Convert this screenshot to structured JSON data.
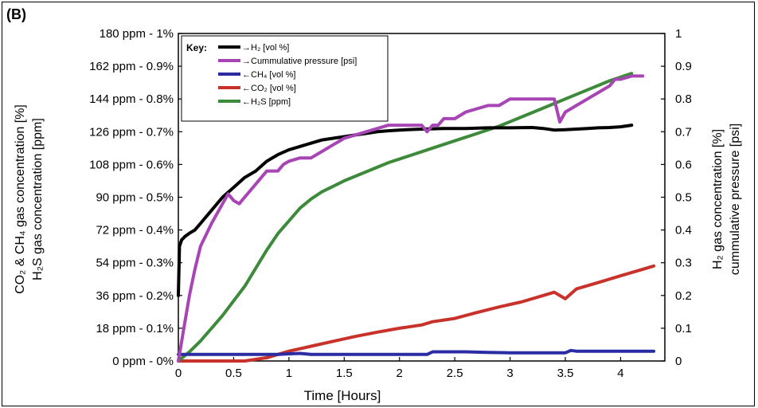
{
  "panel_label": "(B)",
  "chart_data": {
    "type": "line",
    "xlabel": "Time [Hours]",
    "xlim": [
      0,
      4.4
    ],
    "x_ticks": [
      "0",
      "0.5",
      "1",
      "1.5",
      "2",
      "2.5",
      "3",
      "3.5",
      "4"
    ],
    "y_left_ylabel_line1": "CO₂ & CH₄ gas concentration [%]",
    "y_left_ylabel_line2": "H₂S gas concentration [ppm]",
    "y_left_ylim": [
      0,
      1
    ],
    "y_left_ticks": [
      "0 ppm -   0%",
      "18 ppm - 0.1%",
      "36 ppm - 0.2%",
      "54 ppm - 0.3%",
      "72 ppm - 0.4%",
      "90 ppm - 0.5%",
      "108 ppm - 0.6%",
      "126 ppm - 0.7%",
      "144 ppm - 0.8%",
      "162 ppm - 0.9%",
      "180 ppm -   1%"
    ],
    "y_right_ylabel_line1": "H₂ gas concentration [%]",
    "y_right_ylabel_line2": "cummulative pressure [psi]",
    "y_right_ylim": [
      0,
      1
    ],
    "y_right_ticks": [
      "0",
      "0.1",
      "0.2",
      "0.3",
      "0.4",
      "0.5",
      "0.6",
      "0.7",
      "0.8",
      "0.9",
      "1"
    ],
    "legend_title": "Key:",
    "legend_placement": "top-left",
    "series": [
      {
        "name": "→H₂ [vol %]",
        "color": "#000000",
        "axis": "right",
        "x": [
          0,
          0.01,
          0.03,
          0.06,
          0.1,
          0.15,
          0.2,
          0.3,
          0.4,
          0.5,
          0.6,
          0.7,
          0.8,
          0.9,
          1.0,
          1.1,
          1.2,
          1.3,
          1.4,
          1.5,
          1.6,
          1.7,
          1.8,
          1.9,
          2.0,
          2.2,
          2.4,
          2.6,
          2.8,
          3.0,
          3.2,
          3.3,
          3.4,
          3.5,
          3.6,
          3.7,
          3.8,
          3.9,
          4.0,
          4.1
        ],
        "values": [
          0.2,
          0.35,
          0.37,
          0.38,
          0.39,
          0.4,
          0.42,
          0.46,
          0.5,
          0.53,
          0.56,
          0.58,
          0.61,
          0.63,
          0.645,
          0.655,
          0.665,
          0.675,
          0.68,
          0.685,
          0.69,
          0.695,
          0.7,
          0.703,
          0.705,
          0.708,
          0.71,
          0.71,
          0.712,
          0.712,
          0.713,
          0.71,
          0.705,
          0.706,
          0.708,
          0.71,
          0.712,
          0.713,
          0.715,
          0.72
        ]
      },
      {
        "name": "→Cummulative pressure [psi]",
        "color": "#a845b5",
        "axis": "right",
        "x": [
          0,
          0.05,
          0.1,
          0.15,
          0.2,
          0.3,
          0.4,
          0.45,
          0.5,
          0.55,
          0.6,
          0.7,
          0.75,
          0.8,
          0.9,
          0.95,
          1.0,
          1.1,
          1.2,
          1.3,
          1.4,
          1.45,
          1.5,
          1.6,
          1.7,
          1.8,
          1.9,
          2.0,
          2.1,
          2.2,
          2.25,
          2.3,
          2.35,
          2.4,
          2.5,
          2.6,
          2.7,
          2.8,
          2.9,
          3.0,
          3.1,
          3.2,
          3.3,
          3.4,
          3.45,
          3.5,
          3.6,
          3.7,
          3.8,
          3.9,
          3.95,
          4.0,
          4.1,
          4.2
        ],
        "values": [
          0,
          0.1,
          0.2,
          0.28,
          0.35,
          0.42,
          0.48,
          0.51,
          0.49,
          0.48,
          0.5,
          0.54,
          0.56,
          0.58,
          0.58,
          0.6,
          0.61,
          0.62,
          0.62,
          0.64,
          0.66,
          0.67,
          0.68,
          0.69,
          0.7,
          0.71,
          0.72,
          0.72,
          0.72,
          0.72,
          0.7,
          0.72,
          0.72,
          0.74,
          0.74,
          0.76,
          0.77,
          0.78,
          0.78,
          0.8,
          0.8,
          0.8,
          0.8,
          0.8,
          0.73,
          0.76,
          0.78,
          0.8,
          0.82,
          0.84,
          0.86,
          0.86,
          0.87,
          0.87
        ]
      },
      {
        "name": "←CH₄ [vol %]",
        "color": "#2b2ba3",
        "axis": "left",
        "x": [
          0,
          0.1,
          0.3,
          0.5,
          0.7,
          0.9,
          1.0,
          1.1,
          1.2,
          1.3,
          1.5,
          1.7,
          1.9,
          2.1,
          2.25,
          2.3,
          2.4,
          2.6,
          2.8,
          3.0,
          3.2,
          3.4,
          3.5,
          3.55,
          3.6,
          3.8,
          4.0,
          4.2,
          4.3
        ],
        "values": [
          0.02,
          0.02,
          0.02,
          0.02,
          0.02,
          0.02,
          0.022,
          0.023,
          0.02,
          0.02,
          0.02,
          0.02,
          0.02,
          0.02,
          0.02,
          0.028,
          0.028,
          0.028,
          0.026,
          0.025,
          0.025,
          0.025,
          0.025,
          0.032,
          0.03,
          0.03,
          0.03,
          0.03,
          0.03
        ]
      },
      {
        "name": "←CO₂ [vol %]",
        "color": "#c8322a",
        "axis": "left",
        "x": [
          0,
          0.3,
          0.6,
          0.8,
          1.0,
          1.2,
          1.4,
          1.6,
          1.8,
          2.0,
          2.2,
          2.3,
          2.5,
          2.7,
          2.9,
          3.1,
          3.3,
          3.4,
          3.5,
          3.6,
          3.8,
          4.0,
          4.2,
          4.3
        ],
        "values": [
          0,
          0,
          0,
          0.01,
          0.03,
          0.045,
          0.06,
          0.075,
          0.088,
          0.1,
          0.11,
          0.12,
          0.13,
          0.148,
          0.165,
          0.18,
          0.2,
          0.21,
          0.19,
          0.22,
          0.24,
          0.26,
          0.28,
          0.29
        ]
      },
      {
        "name": "←H₂S [ppm]",
        "color": "#3d8a3a",
        "axis": "left",
        "x": [
          0,
          0.1,
          0.2,
          0.3,
          0.4,
          0.5,
          0.6,
          0.7,
          0.8,
          0.9,
          1.0,
          1.1,
          1.2,
          1.3,
          1.4,
          1.5,
          1.7,
          1.9,
          2.1,
          2.3,
          2.5,
          2.7,
          2.9,
          3.1,
          3.3,
          3.5,
          3.7,
          3.9,
          4.1
        ],
        "values": [
          0,
          5,
          11,
          18,
          25,
          33,
          41,
          51,
          61,
          70,
          77,
          84,
          89,
          93,
          96,
          99,
          104,
          109,
          113,
          117,
          121,
          125,
          129,
          134,
          139,
          144,
          149,
          154,
          158
        ]
      }
    ]
  }
}
